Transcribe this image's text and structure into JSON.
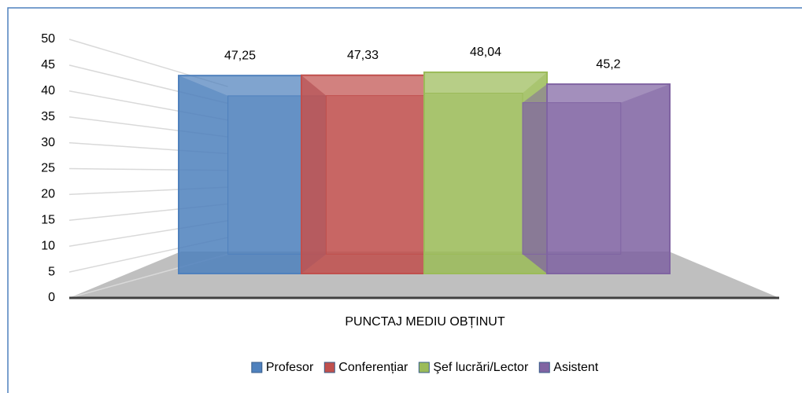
{
  "chart_data": {
    "type": "bar3d",
    "categories": [
      "PUNCTAJ MEDIU OBȚINUT"
    ],
    "series": [
      {
        "name": "Profesor",
        "color": "#4f81bd",
        "values": [
          47.25
        ],
        "value_labels": [
          "47,25"
        ]
      },
      {
        "name": "Conferențiar",
        "color": "#c0504d",
        "values": [
          47.33
        ],
        "value_labels": [
          "47,33"
        ]
      },
      {
        "name": "Şef lucrări/Lector",
        "color": "#9bbb59",
        "values": [
          48.04
        ],
        "value_labels": [
          "48,04"
        ]
      },
      {
        "name": "Asistent",
        "color": "#8064a2",
        "values": [
          45.2
        ],
        "value_labels": [
          "45,2"
        ]
      }
    ],
    "ylim": [
      0,
      50
    ],
    "yticks": [
      0,
      5,
      10,
      15,
      20,
      25,
      30,
      35,
      40,
      45,
      50
    ],
    "grid": true,
    "legend": "bottom"
  }
}
